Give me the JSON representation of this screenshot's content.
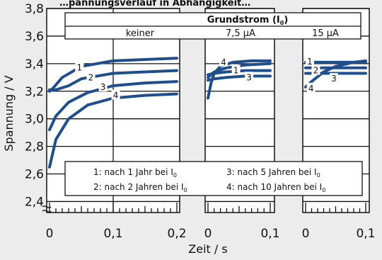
{
  "chart_data": {
    "type": "line",
    "title_partial": "…pannungsverlauf in Abhängigkeit…",
    "ylabel": "Spannung / V",
    "xlabel": "Zeit / s",
    "ylim": [
      2.4,
      3.8
    ],
    "yticks": [
      "3,8",
      "3,6",
      "3,4",
      "3,2",
      "3,0",
      "2,8",
      "2,6",
      "2,4"
    ],
    "header": {
      "title": "Grundstrom (I",
      "title_sub": "0",
      "title_end": ")",
      "conditions": [
        "keiner",
        "7,5 µA",
        "15 µA"
      ]
    },
    "legend": [
      {
        "text": "1: nach 1 Jahr bei I",
        "sub": "0"
      },
      {
        "text": "3: nach 5 Jahren bei I",
        "sub": "0"
      },
      {
        "text": "2: nach 2 Jahren bei I",
        "sub": "0"
      },
      {
        "text": "4: nach 10 Jahren bei I",
        "sub": "0"
      }
    ],
    "panels": [
      {
        "condition": "keiner",
        "xlim": [
          0,
          0.2
        ],
        "xticks": [
          "0",
          "0,1",
          "0,2"
        ],
        "series": [
          {
            "name": "1",
            "x": [
              0,
              0.005,
              0.02,
              0.05,
              0.1,
              0.15,
              0.2
            ],
            "y": [
              3.2,
              3.22,
              3.3,
              3.38,
              3.42,
              3.43,
              3.44
            ]
          },
          {
            "name": "2",
            "x": [
              0,
              0.01,
              0.03,
              0.05,
              0.1,
              0.15,
              0.2
            ],
            "y": [
              3.21,
              3.21,
              3.24,
              3.29,
              3.33,
              3.34,
              3.35
            ]
          },
          {
            "name": "3",
            "x": [
              0,
              0.01,
              0.03,
              0.06,
              0.1,
              0.15,
              0.2
            ],
            "y": [
              2.92,
              3.02,
              3.12,
              3.19,
              3.24,
              3.26,
              3.27
            ]
          },
          {
            "name": "4",
            "x": [
              0,
              0.01,
              0.03,
              0.06,
              0.1,
              0.15,
              0.2
            ],
            "y": [
              2.65,
              2.85,
              3.0,
              3.1,
              3.15,
              3.17,
              3.18
            ]
          }
        ],
        "label_points": [
          {
            "name": "1",
            "x": 0.047,
            "y": 3.37
          },
          {
            "name": "2",
            "x": 0.065,
            "y": 3.3
          },
          {
            "name": "3",
            "x": 0.084,
            "y": 3.23
          },
          {
            "name": "4",
            "x": 0.104,
            "y": 3.17
          }
        ]
      },
      {
        "condition": "7,5 µA",
        "xlim": [
          0,
          0.1
        ],
        "xticks": [
          "0",
          "0,1"
        ],
        "series": [
          {
            "name": "1",
            "x": [
              0,
              0.01,
              0.03,
              0.06,
              0.1
            ],
            "y": [
              3.3,
              3.34,
              3.37,
              3.39,
              3.4
            ]
          },
          {
            "name": "2",
            "x": [
              0,
              0.01,
              0.03,
              0.06,
              0.1
            ],
            "y": [
              3.32,
              3.33,
              3.34,
              3.35,
              3.35
            ]
          },
          {
            "name": "3",
            "x": [
              0,
              0.01,
              0.03,
              0.06,
              0.1
            ],
            "y": [
              3.28,
              3.29,
              3.3,
              3.31,
              3.31
            ]
          },
          {
            "name": "4",
            "x": [
              0,
              0.005,
              0.01,
              0.02,
              0.04,
              0.07,
              0.1
            ],
            "y": [
              3.15,
              3.26,
              3.33,
              3.38,
              3.41,
              3.42,
              3.42
            ]
          }
        ],
        "label_points": [
          {
            "name": "4",
            "x": 0.025,
            "y": 3.41
          },
          {
            "name": "1",
            "x": 0.045,
            "y": 3.35
          },
          {
            "name": "3",
            "x": 0.066,
            "y": 3.3
          }
        ]
      },
      {
        "condition": "15 µA",
        "xlim": [
          0,
          0.1
        ],
        "xticks": [
          "0",
          "0,1"
        ],
        "series": [
          {
            "name": "1",
            "x": [
              0,
              0.02,
              0.05,
              0.1
            ],
            "y": [
              3.41,
              3.41,
              3.41,
              3.41
            ]
          },
          {
            "name": "2",
            "x": [
              0,
              0.02,
              0.05,
              0.1
            ],
            "y": [
              3.37,
              3.37,
              3.37,
              3.37
            ]
          },
          {
            "name": "3",
            "x": [
              0,
              0.02,
              0.05,
              0.1
            ],
            "y": [
              3.33,
              3.33,
              3.33,
              3.33
            ]
          },
          {
            "name": "4",
            "x": [
              0,
              0.01,
              0.03,
              0.05,
              0.08,
              0.1
            ],
            "y": [
              3.23,
              3.27,
              3.34,
              3.38,
              3.41,
              3.42
            ]
          }
        ],
        "label_points": [
          {
            "name": "1",
            "x": 0.007,
            "y": 3.415
          },
          {
            "name": "2",
            "x": 0.017,
            "y": 3.35
          },
          {
            "name": "3",
            "x": 0.047,
            "y": 3.29
          },
          {
            "name": "4",
            "x": 0.009,
            "y": 3.22
          }
        ]
      }
    ]
  },
  "colors": {
    "curve": "#1f4e8c",
    "background": "#ececec",
    "panel": "#ffffff"
  }
}
